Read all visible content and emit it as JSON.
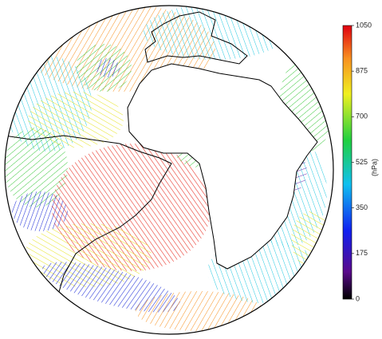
{
  "colorbar": {
    "label": "(hPa)",
    "lim": [
      0,
      1050
    ],
    "ticks": [
      0,
      175,
      350,
      525,
      700,
      875,
      1050
    ]
  }
}
